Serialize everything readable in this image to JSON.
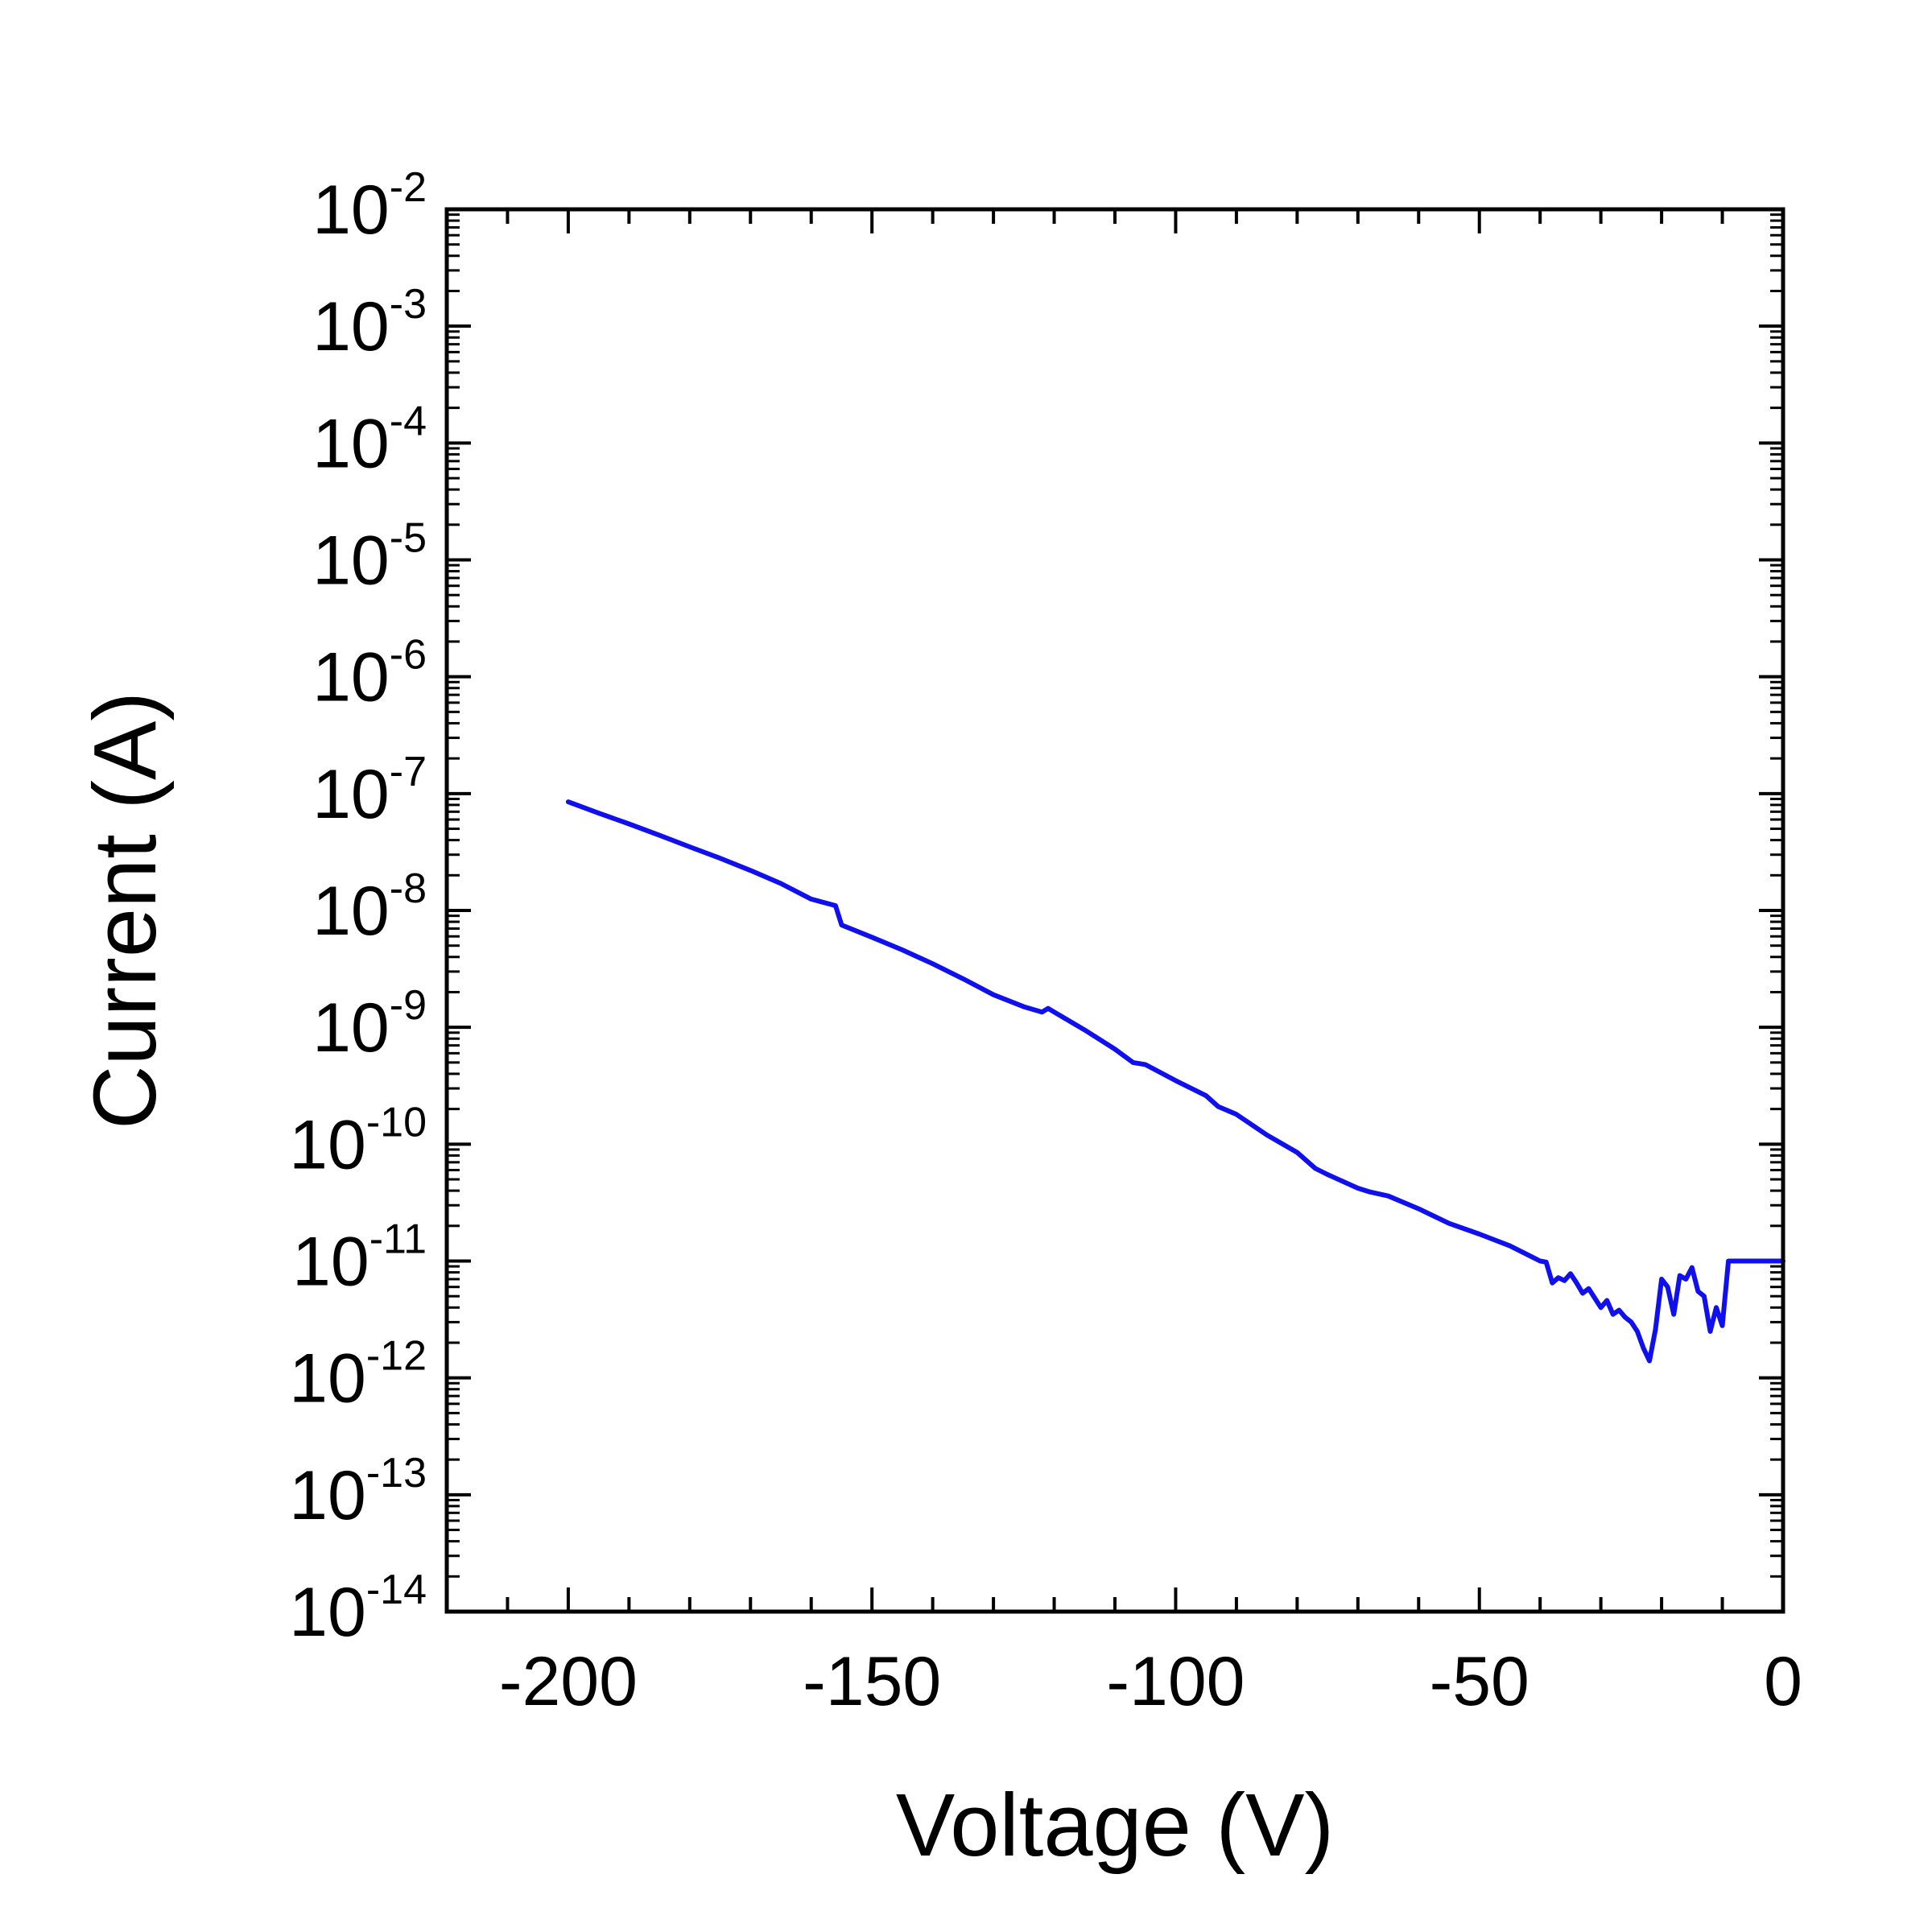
{
  "chart_data": {
    "type": "line",
    "xlabel": "Voltage (V)",
    "ylabel": "Current (A)",
    "xlim": [
      -220,
      0
    ],
    "ylim": [
      1e-14,
      0.01
    ],
    "y_scale": "log",
    "grid": false,
    "legend": "none",
    "x_ticks": [
      -200,
      -150,
      -100,
      -50,
      0
    ],
    "x_tick_labels": [
      "-200",
      "-150",
      "-100",
      "-50",
      "0"
    ],
    "y_ticks": [
      -14,
      -13,
      -12,
      -11,
      -10,
      -9,
      -8,
      -7,
      -6,
      -5,
      -4,
      -3,
      -2
    ],
    "y_tick_labels": [
      {
        "base": "10",
        "exp": "-14"
      },
      {
        "base": "10",
        "exp": "-13"
      },
      {
        "base": "10",
        "exp": "-12"
      },
      {
        "base": "10",
        "exp": "-11"
      },
      {
        "base": "10",
        "exp": "-10"
      },
      {
        "base": "10",
        "exp": "-9"
      },
      {
        "base": "10",
        "exp": "-8"
      },
      {
        "base": "10",
        "exp": "-7"
      },
      {
        "base": "10",
        "exp": "-6"
      },
      {
        "base": "10",
        "exp": "-5"
      },
      {
        "base": "10",
        "exp": "-4"
      },
      {
        "base": "10",
        "exp": "-3"
      },
      {
        "base": "10",
        "exp": "-2"
      }
    ],
    "series": [
      {
        "color": "#1010ee",
        "x": [
          -200,
          -195,
          -190,
          -185,
          -180,
          -175,
          -170,
          -165,
          -160,
          -156,
          -155,
          -150,
          -145,
          -140,
          -135,
          -130,
          -125,
          -122,
          -121,
          -120,
          -115,
          -110,
          -107,
          -105,
          -100,
          -95,
          -93,
          -90,
          -85,
          -80,
          -77,
          -75,
          -70,
          -68,
          -65,
          -60,
          -55,
          -50,
          -45,
          -40,
          -39,
          -38,
          -37,
          -36,
          -35,
          -34,
          -33,
          -32,
          -30,
          -29,
          -28,
          -27,
          -26,
          -25,
          -24,
          -23,
          -22,
          -21,
          -20,
          -19,
          -18,
          -17,
          -16,
          -15,
          -14,
          -13,
          -12,
          -11,
          -10,
          -9,
          -8,
          -7,
          -6,
          -5,
          -4,
          -3,
          -2,
          -1,
          0
        ],
        "y": [
          8.5e-08,
          6.8e-08,
          5.5e-08,
          4.4e-08,
          3.5e-08,
          2.8e-08,
          2.2e-08,
          1.7e-08,
          1.25e-08,
          1.1e-08,
          7.5e-09,
          5.9e-09,
          4.6e-09,
          3.5e-09,
          2.6e-09,
          1.9e-09,
          1.5e-09,
          1.35e-09,
          1.45e-09,
          1.35e-09,
          9.5e-10,
          6.5e-10,
          5e-10,
          4.8e-10,
          3.5e-10,
          2.6e-10,
          2.1e-10,
          1.8e-10,
          1.2e-10,
          8.5e-11,
          6.2e-11,
          5.5e-11,
          4.2e-11,
          3.9e-11,
          3.6e-11,
          2.8e-11,
          2.1e-11,
          1.7e-11,
          1.35e-11,
          1e-11,
          9.8e-12,
          6.5e-12,
          7.2e-12,
          6.8e-12,
          7.8e-12,
          6.5e-12,
          5.3e-12,
          5.8e-12,
          4e-12,
          4.6e-12,
          3.5e-12,
          3.8e-12,
          3.3e-12,
          3e-12,
          2.5e-12,
          1.8e-12,
          1.4e-12,
          2.6e-12,
          7e-12,
          6e-12,
          3.5e-12,
          7.5e-12,
          7e-12,
          8.8e-12,
          5.5e-12,
          5e-12,
          2.5e-12,
          4e-12,
          2.8e-12,
          1e-11,
          1e-11,
          1e-11,
          1e-11,
          1e-11,
          1e-11,
          1e-11,
          1e-11,
          1e-11,
          1e-11
        ]
      }
    ]
  }
}
